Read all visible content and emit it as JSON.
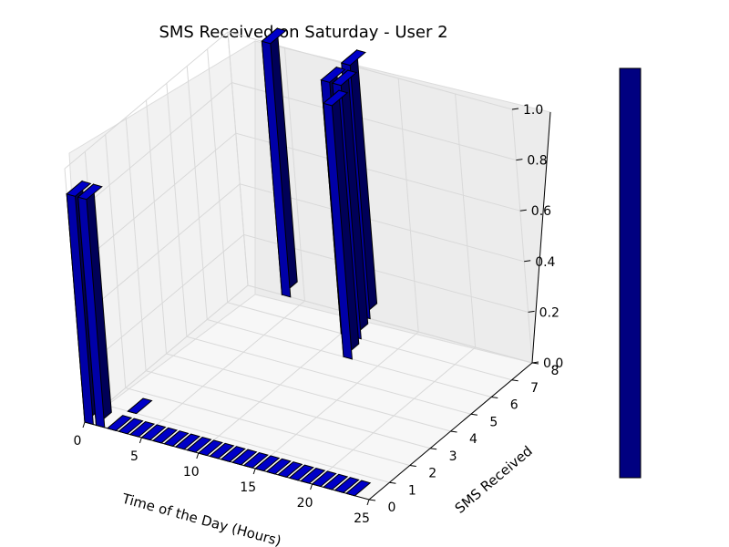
{
  "chart_data": {
    "type": "bar3d",
    "title": "SMS Received on Saturday - User 2",
    "xlabel": "Time of the Day (Hours)",
    "ylabel": "SMS Received",
    "zlabel": "",
    "xlim": [
      0,
      25
    ],
    "ylim": [
      0,
      8
    ],
    "zlim": [
      0,
      1.0
    ],
    "x_ticks": [
      "0",
      "5",
      "10",
      "15",
      "20",
      "25"
    ],
    "y_ticks": [
      "0",
      "1",
      "2",
      "3",
      "4",
      "5",
      "6",
      "7",
      "8"
    ],
    "z_ticks": [
      "0.0",
      "0.2",
      "0.4",
      "0.6",
      "0.8",
      "1.0"
    ],
    "grid": true,
    "colorbar": true,
    "colors": {
      "bar": "#000080",
      "pane_back": "#ececec",
      "pane_side": "#f2f2f2",
      "pane_floor": "#f7f7f7"
    },
    "bars": [
      {
        "hour": 0,
        "sms": 0,
        "value": 0.9
      },
      {
        "hour": 1,
        "sms": 0,
        "value": 0.9
      },
      {
        "hour": 2,
        "sms": 0,
        "value": 0.0
      },
      {
        "hour": 2,
        "sms": 1,
        "value": 0.0
      },
      {
        "hour": 3,
        "sms": 0,
        "value": 0.0
      },
      {
        "hour": 4,
        "sms": 0,
        "value": 0.0
      },
      {
        "hour": 5,
        "sms": 0,
        "value": 0.0
      },
      {
        "hour": 6,
        "sms": 0,
        "value": 0.0
      },
      {
        "hour": 7,
        "sms": 0,
        "value": 0.0
      },
      {
        "hour": 8,
        "sms": 0,
        "value": 0.0
      },
      {
        "hour": 9,
        "sms": 0,
        "value": 0.0
      },
      {
        "hour": 10,
        "sms": 0,
        "value": 0.0
      },
      {
        "hour": 11,
        "sms": 0,
        "value": 0.0
      },
      {
        "hour": 12,
        "sms": 0,
        "value": 0.0
      },
      {
        "hour": 13,
        "sms": 0,
        "value": 0.0
      },
      {
        "hour": 14,
        "sms": 0,
        "value": 0.0
      },
      {
        "hour": 15,
        "sms": 0,
        "value": 0.0
      },
      {
        "hour": 16,
        "sms": 0,
        "value": 0.0
      },
      {
        "hour": 17,
        "sms": 0,
        "value": 0.0
      },
      {
        "hour": 18,
        "sms": 0,
        "value": 0.0
      },
      {
        "hour": 19,
        "sms": 0,
        "value": 0.0
      },
      {
        "hour": 20,
        "sms": 0,
        "value": 0.0
      },
      {
        "hour": 21,
        "sms": 0,
        "value": 0.0
      },
      {
        "hour": 22,
        "sms": 0,
        "value": 0.0
      },
      {
        "hour": 23,
        "sms": 0,
        "value": 0.0
      },
      {
        "hour": 3,
        "sms": 8,
        "value": 1.0
      },
      {
        "hour": 10,
        "sms": 8,
        "value": 1.0
      },
      {
        "hour": 10,
        "sms": 7,
        "value": 1.0
      },
      {
        "hour": 11,
        "sms": 7,
        "value": 1.0
      },
      {
        "hour": 12,
        "sms": 6,
        "value": 1.0
      }
    ]
  }
}
